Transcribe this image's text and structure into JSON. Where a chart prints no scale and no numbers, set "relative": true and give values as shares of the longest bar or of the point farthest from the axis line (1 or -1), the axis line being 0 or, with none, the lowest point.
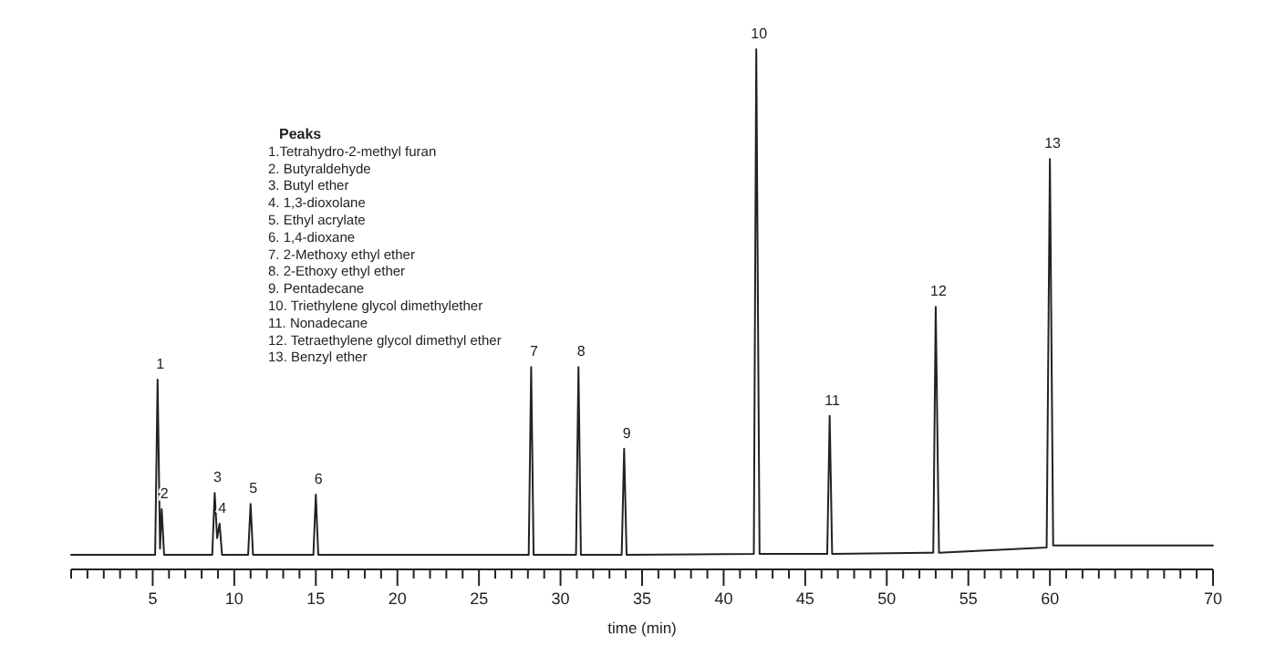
{
  "chart_data": {
    "type": "line",
    "relative": true,
    "xlabel": "time (min)",
    "xlim": [
      0,
      70
    ],
    "xticks": [
      {
        "value": 0,
        "label": null
      },
      {
        "value": 1,
        "label": null
      },
      {
        "value": 2,
        "label": null
      },
      {
        "value": 3,
        "label": null
      },
      {
        "value": 4,
        "label": null
      },
      5,
      {
        "value": 6,
        "label": null
      },
      {
        "value": 7,
        "label": null
      },
      {
        "value": 8,
        "label": null
      },
      {
        "value": 9,
        "label": null
      },
      10,
      {
        "value": 11,
        "label": null
      },
      {
        "value": 12,
        "label": null
      },
      {
        "value": 13,
        "label": null
      },
      {
        "value": 14,
        "label": null
      },
      15,
      {
        "value": 16,
        "label": null
      },
      {
        "value": 17,
        "label": null
      },
      {
        "value": 18,
        "label": null
      },
      {
        "value": 19,
        "label": null
      },
      20,
      {
        "value": 21,
        "label": null
      },
      {
        "value": 22,
        "label": null
      },
      {
        "value": 23,
        "label": null
      },
      {
        "value": 24,
        "label": null
      },
      25,
      {
        "value": 26,
        "label": null
      },
      {
        "value": 27,
        "label": null
      },
      {
        "value": 28,
        "label": null
      },
      {
        "value": 29,
        "label": null
      },
      30,
      {
        "value": 31,
        "label": null
      },
      {
        "value": 32,
        "label": null
      },
      {
        "value": 33,
        "label": null
      },
      {
        "value": 34,
        "label": null
      },
      35,
      {
        "value": 36,
        "label": null
      },
      {
        "value": 37,
        "label": null
      },
      {
        "value": 38,
        "label": null
      },
      {
        "value": 39,
        "label": null
      },
      40,
      {
        "value": 41,
        "label": null
      },
      {
        "value": 42,
        "label": null
      },
      {
        "value": 43,
        "label": null
      },
      {
        "value": 44,
        "label": null
      },
      45,
      {
        "value": 46,
        "label": null
      },
      {
        "value": 47,
        "label": null
      },
      {
        "value": 48,
        "label": null
      },
      {
        "value": 49,
        "label": null
      },
      50,
      {
        "value": 51,
        "label": null
      },
      {
        "value": 52,
        "label": null
      },
      {
        "value": 53,
        "label": null
      },
      {
        "value": 54,
        "label": null
      },
      55,
      {
        "value": 56,
        "label": null
      },
      {
        "value": 57,
        "label": null
      },
      {
        "value": 58,
        "label": null
      },
      {
        "value": 59,
        "label": null
      },
      60,
      {
        "value": 61,
        "label": null
      },
      {
        "value": 62,
        "label": null
      },
      {
        "value": 63,
        "label": null
      },
      {
        "value": 64,
        "label": null
      },
      {
        "value": 65,
        "label": null
      },
      {
        "value": 66,
        "label": null
      },
      {
        "value": 67,
        "label": null
      },
      {
        "value": 68,
        "label": null
      },
      {
        "value": 69,
        "label": null
      },
      70
    ],
    "series": [
      {
        "color": "#222222",
        "x": [
          0,
          5.15,
          5.3,
          5.45,
          5.55,
          5.7,
          8.65,
          8.8,
          8.95,
          9.1,
          9.25,
          10.85,
          11.0,
          11.15,
          14.85,
          15.0,
          15.15,
          28.05,
          28.2,
          28.35,
          30.95,
          31.1,
          31.25,
          33.75,
          33.9,
          34.05,
          41.85,
          42.0,
          42.2,
          46.35,
          46.5,
          46.65,
          52.85,
          53.0,
          53.2,
          59.8,
          60.0,
          60.2,
          70
        ],
        "values": [
          0.028,
          0.028,
          0.365,
          0.04,
          0.116,
          0.028,
          0.028,
          0.147,
          0.06,
          0.088,
          0.028,
          0.028,
          0.126,
          0.028,
          0.028,
          0.144,
          0.028,
          0.028,
          0.389,
          0.028,
          0.028,
          0.389,
          0.028,
          0.028,
          0.232,
          0.028,
          0.03,
          1,
          0.03,
          0.03,
          0.295,
          0.03,
          0.032,
          0.505,
          0.032,
          0.042,
          0.789,
          0.046,
          0.046
        ]
      }
    ],
    "annotations": [
      "Peaks",
      "1.Tetrahydro-2-methyl furan",
      "2. Butyraldehyde",
      "3. Butyl ether",
      "4. 1,3-dioxolane",
      "5. Ethyl acrylate",
      "6. 1,4-dioxane",
      "7. 2-Methoxy ethyl ether",
      "8. 2-Ethoxy ethyl ether",
      "9. Pentadecane",
      "10. Triethylene glycol dimethylether",
      "11. Nonadecane",
      "12. Tetraethylene glycol dimethyl ether",
      "13. Benzyl ether",
      {
        "text": "1",
        "x": 5.3,
        "y": 0.365
      },
      {
        "text": "2",
        "x": 5.55,
        "y": 0.116
      },
      {
        "text": "3",
        "x": 8.8,
        "y": 0.147
      },
      {
        "text": "4",
        "x": 9.1,
        "y": 0.088
      },
      {
        "text": "5",
        "x": 11.0,
        "y": 0.126
      },
      {
        "text": "6",
        "x": 15.0,
        "y": 0.144
      },
      {
        "text": "7",
        "x": 28.2,
        "y": 0.389
      },
      {
        "text": "8",
        "x": 31.1,
        "y": 0.389
      },
      {
        "text": "9",
        "x": 33.9,
        "y": 0.232
      },
      {
        "text": "10",
        "x": 42.0,
        "y": 1
      },
      {
        "text": "11",
        "x": 46.5,
        "y": 0.295
      },
      {
        "text": "12",
        "x": 53.0,
        "y": 0.505
      },
      {
        "text": "13",
        "x": 60.0,
        "y": 0.789
      }
    ]
  }
}
